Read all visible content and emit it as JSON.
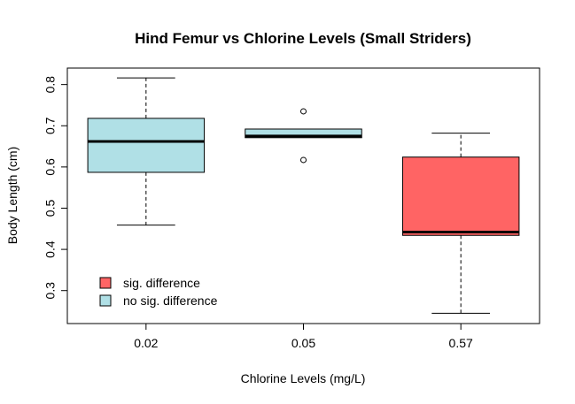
{
  "chart_data": {
    "type": "boxplot",
    "title": "Hind Femur vs Chlorine Levels (Small Striders)",
    "xlabel": "Chlorine Levels (mg/L)",
    "ylabel": "Body Length (cm)",
    "ylim": [
      0.22,
      0.84
    ],
    "yticks": [
      0.3,
      0.4,
      0.5,
      0.6,
      0.7,
      0.8
    ],
    "categories": [
      "0.02",
      "0.05",
      "0.57"
    ],
    "boxes": [
      {
        "category": "0.02",
        "whisker_low": 0.459,
        "q1": 0.587,
        "median": 0.662,
        "q3": 0.718,
        "whisker_high": 0.816,
        "outliers": [],
        "group": "no sig. difference"
      },
      {
        "category": "0.05",
        "whisker_low": 0.671,
        "q1": 0.671,
        "median": 0.675,
        "q3": 0.692,
        "whisker_high": 0.692,
        "outliers": [
          0.735,
          0.617
        ],
        "group": "no sig. difference"
      },
      {
        "category": "0.57",
        "whisker_low": 0.245,
        "q1": 0.434,
        "median": 0.442,
        "q3": 0.624,
        "whisker_high": 0.682,
        "outliers": [],
        "group": "sig. difference"
      }
    ],
    "legend": {
      "placement": "bottom-left",
      "entries": [
        {
          "label": "sig. difference",
          "color": "#FF6464"
        },
        {
          "label": "no sig. difference",
          "color": "#B0E0E6"
        }
      ]
    },
    "colors": {
      "sig": "#FF6464",
      "nosig": "#B0E0E6"
    },
    "grid": false
  }
}
